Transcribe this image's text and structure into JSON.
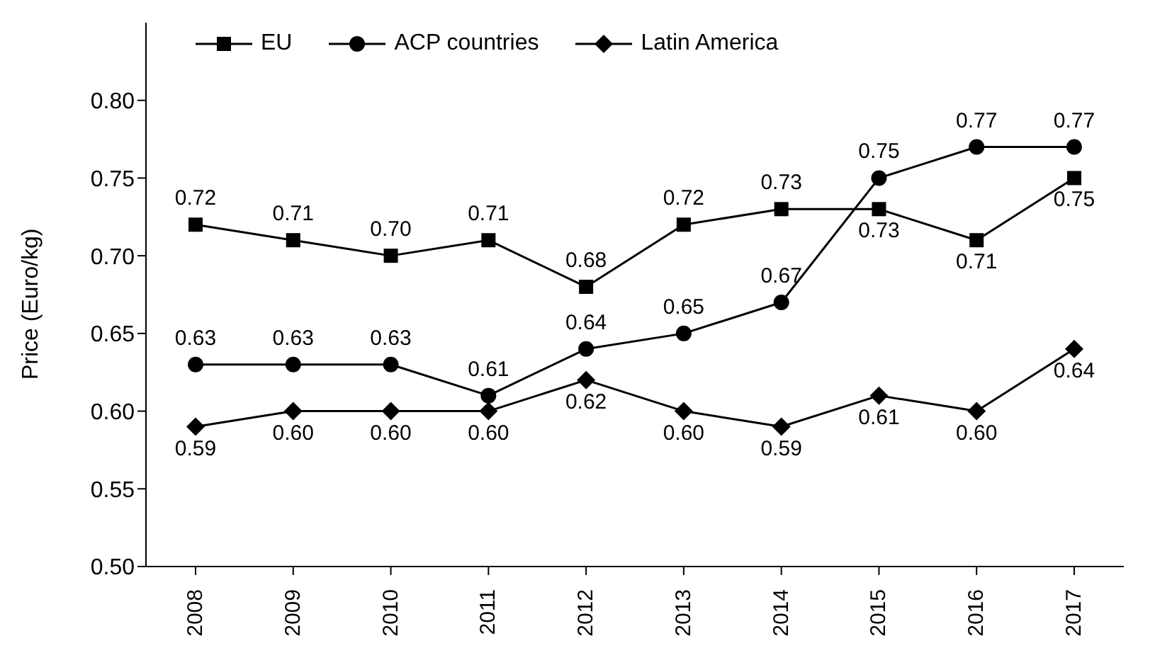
{
  "chart_data": {
    "type": "line",
    "ylabel": "Price (Euro/kg)",
    "categories": [
      "2008",
      "2009",
      "2010",
      "2011",
      "2012",
      "2013",
      "2014",
      "2015",
      "2016",
      "2017"
    ],
    "series": [
      {
        "name": "EU",
        "color": "#000000",
        "marker": "square",
        "values": [
          0.72,
          0.71,
          0.7,
          0.71,
          0.68,
          0.72,
          0.73,
          0.73,
          0.71,
          0.75
        ],
        "value_labels": [
          "0.72",
          "0.71",
          "0.70",
          "0.71",
          "0.68",
          "0.72",
          "0.73",
          "0.73",
          "0.71",
          "0.75"
        ]
      },
      {
        "name": "ACP countries",
        "color": "#000000",
        "marker": "circle",
        "values": [
          0.63,
          0.63,
          0.63,
          0.61,
          0.64,
          0.65,
          0.67,
          0.75,
          0.77,
          0.77
        ],
        "value_labels": [
          "0.63",
          "0.63",
          "0.63",
          "0.61",
          "0.64",
          "0.65",
          "0.67",
          "0.75",
          "0.77",
          "0.77"
        ]
      },
      {
        "name": "Latin America",
        "color": "#000000",
        "marker": "diamond",
        "values": [
          0.59,
          0.6,
          0.6,
          0.6,
          0.62,
          0.6,
          0.59,
          0.61,
          0.6,
          0.64
        ],
        "value_labels": [
          "0.59",
          "0.60",
          "0.60",
          "0.60",
          "0.62",
          "0.60",
          "0.59",
          "0.61",
          "0.60",
          "0.64"
        ]
      }
    ],
    "ylim": [
      0.5,
      0.85
    ],
    "yticks": [
      {
        "value": 0.5,
        "label": "0.50"
      },
      {
        "value": 0.55,
        "label": "0.55"
      },
      {
        "value": 0.6,
        "label": "0.60"
      },
      {
        "value": 0.65,
        "label": "0.65"
      },
      {
        "value": 0.7,
        "label": "0.70"
      },
      {
        "value": 0.75,
        "label": "0.75"
      },
      {
        "value": 0.8,
        "label": "0.80"
      }
    ],
    "grid": false,
    "legend": "top left",
    "line_style": "solid"
  }
}
